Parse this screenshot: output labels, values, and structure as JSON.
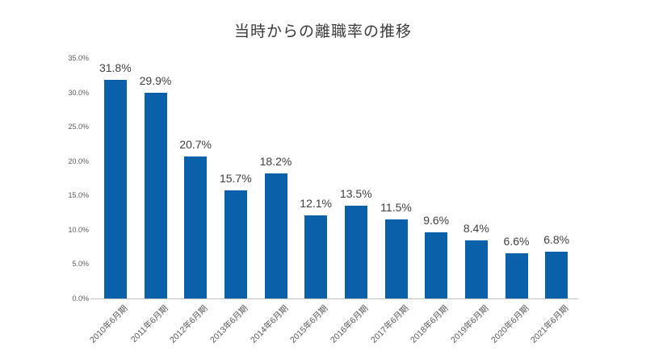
{
  "chart_data": {
    "type": "bar",
    "title": "当時からの離職率の推移",
    "categories": [
      "2010年6月期",
      "2011年6月期",
      "2012年6月期",
      "2013年6月期",
      "2014年6月期",
      "2015年6月期",
      "2016年6月期",
      "2017年6月期",
      "2018年6月期",
      "2019年6月期",
      "2020年6月期",
      "2021年6月期"
    ],
    "values": [
      31.8,
      29.9,
      20.7,
      15.7,
      18.2,
      12.1,
      13.5,
      11.5,
      9.6,
      8.4,
      6.6,
      6.8
    ],
    "value_labels": [
      "31.8%",
      "29.9%",
      "20.7%",
      "15.7%",
      "18.2%",
      "12.1%",
      "13.5%",
      "11.5%",
      "9.6%",
      "8.4%",
      "6.6%",
      "6.8%"
    ],
    "xlabel": "",
    "ylabel": "",
    "ylim": [
      0,
      35
    ],
    "ytick_values": [
      0,
      5,
      10,
      15,
      20,
      25,
      30,
      35
    ],
    "ytick_labels": [
      "0.0%",
      "5.0%",
      "10.0%",
      "15.0%",
      "20.0%",
      "25.0%",
      "30.0%",
      "35.0%"
    ],
    "bar_color": "#0b61a9",
    "grid": false,
    "legend": false,
    "background_color": "#ffffff"
  }
}
